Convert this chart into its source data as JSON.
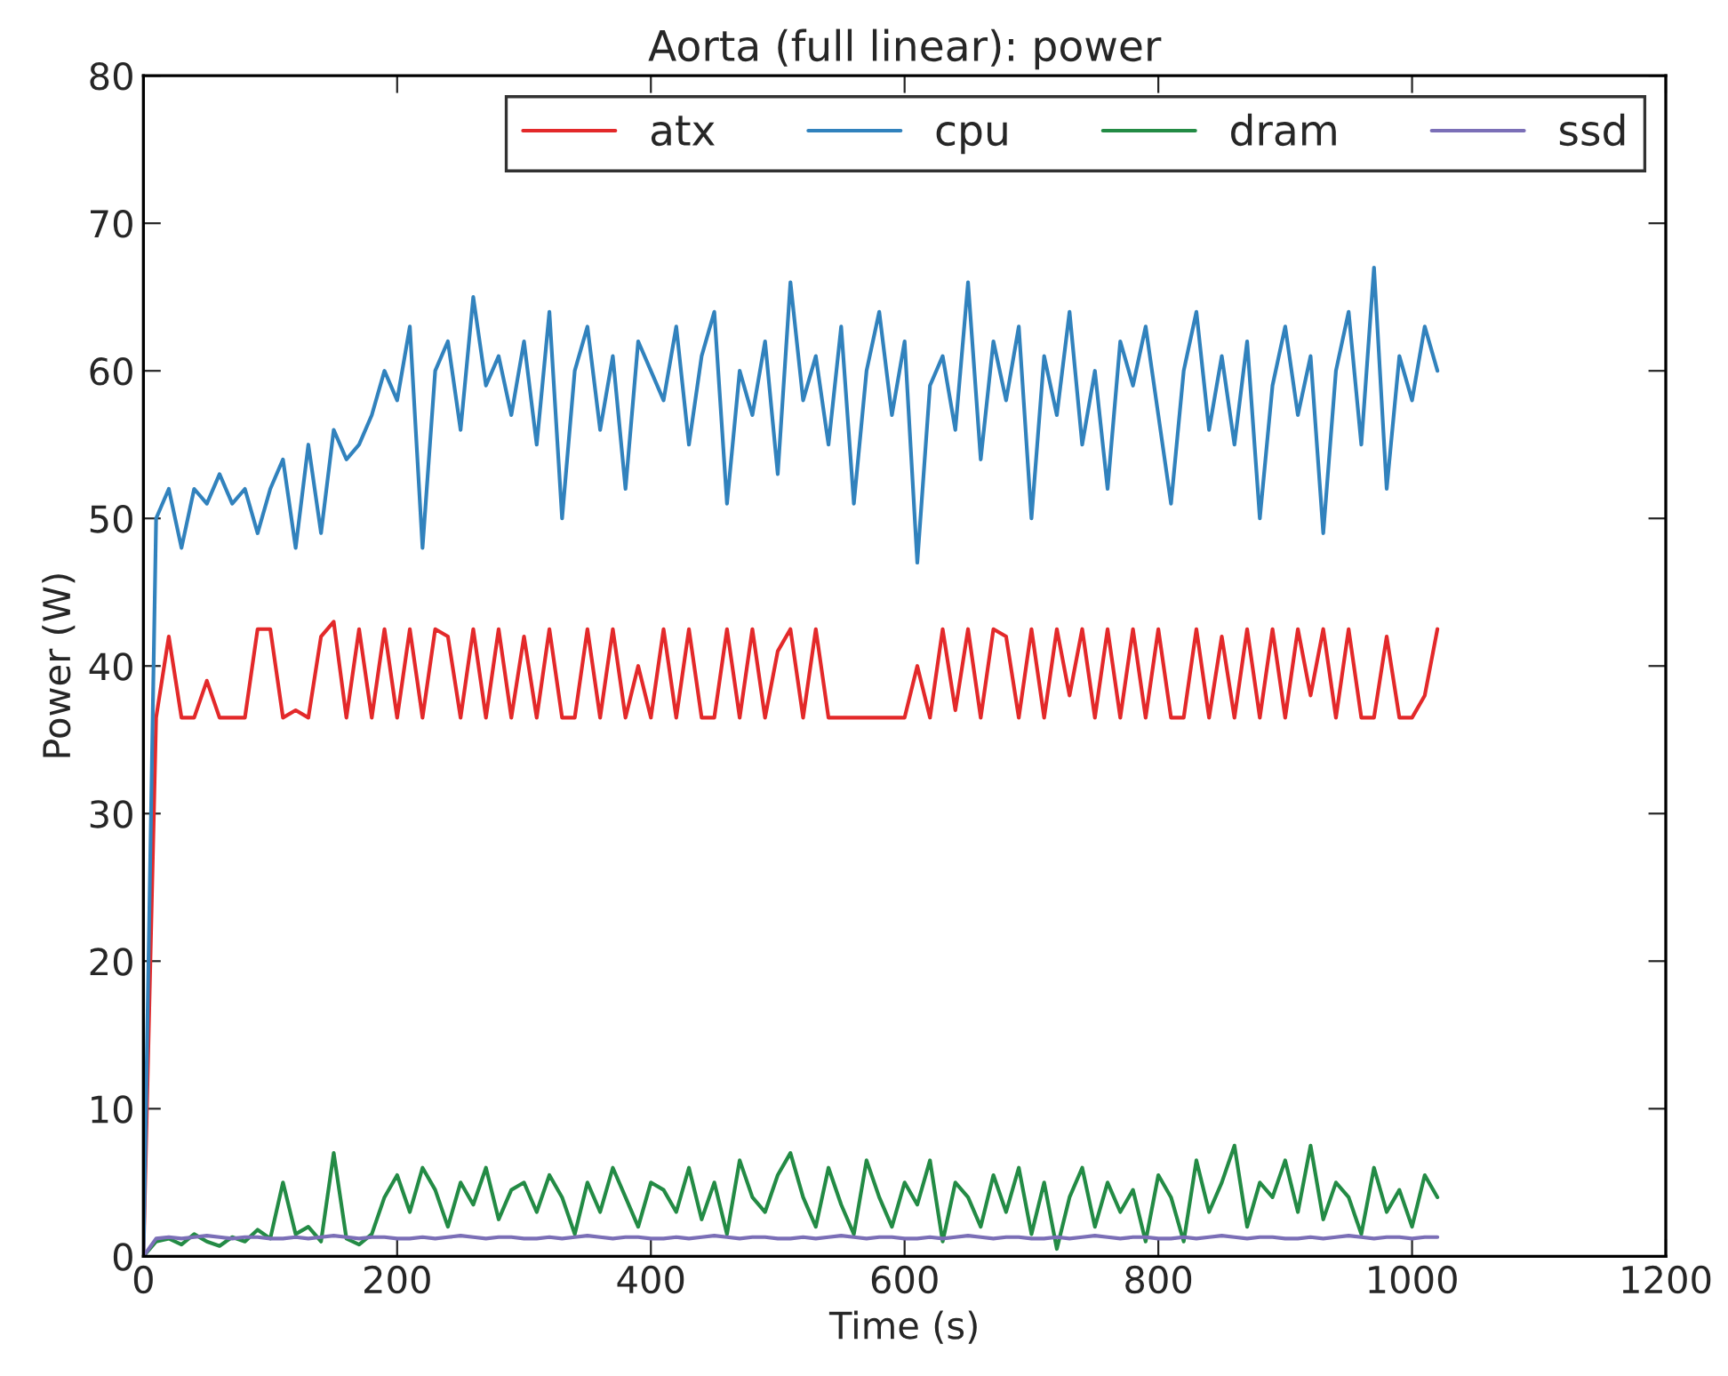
{
  "chart_data": {
    "type": "line",
    "title": "Aorta (full linear): power",
    "xlabel": "Time (s)",
    "ylabel": "Power (W)",
    "x": [
      0,
      10,
      20,
      30,
      40,
      50,
      60,
      70,
      80,
      90,
      100,
      110,
      120,
      130,
      140,
      150,
      160,
      170,
      180,
      190,
      200,
      210,
      220,
      230,
      240,
      250,
      260,
      270,
      280,
      290,
      300,
      310,
      320,
      330,
      340,
      350,
      360,
      370,
      380,
      390,
      400,
      410,
      420,
      430,
      440,
      450,
      460,
      470,
      480,
      490,
      500,
      510,
      520,
      530,
      540,
      550,
      560,
      570,
      580,
      590,
      600,
      610,
      620,
      630,
      640,
      650,
      660,
      670,
      680,
      690,
      700,
      710,
      720,
      730,
      740,
      750,
      760,
      770,
      780,
      790,
      800,
      810,
      820,
      830,
      840,
      850,
      860,
      870,
      880,
      890,
      900,
      910,
      920,
      930,
      940,
      950,
      960,
      970,
      980,
      990,
      1000,
      1010,
      1020
    ],
    "series": [
      {
        "name": "atx",
        "color": "#e3292a",
        "values": [
          0,
          36.5,
          42,
          36.5,
          36.5,
          39,
          36.5,
          36.5,
          36.5,
          42.5,
          42.5,
          36.5,
          37,
          36.5,
          42,
          43,
          36.5,
          42.5,
          36.5,
          42.5,
          36.5,
          42.5,
          36.5,
          42.5,
          42,
          36.5,
          42.5,
          36.5,
          42.5,
          36.5,
          42,
          36.5,
          42.5,
          36.5,
          36.5,
          42.5,
          36.5,
          42.5,
          36.5,
          40,
          36.5,
          42.5,
          36.5,
          42.5,
          36.5,
          36.5,
          42.5,
          36.5,
          42.5,
          36.5,
          41,
          42.5,
          36.5,
          42.5,
          36.5,
          36.5,
          36.5,
          36.5,
          36.5,
          36.5,
          36.5,
          40,
          36.5,
          42.5,
          37,
          42.5,
          36.5,
          42.5,
          42,
          36.5,
          42.5,
          36.5,
          42.5,
          38,
          42.5,
          36.5,
          42.5,
          36.5,
          42.5,
          36.5,
          42.5,
          36.5,
          36.5,
          42.5,
          36.5,
          42,
          36.5,
          42.5,
          36.5,
          42.5,
          36.5,
          42.5,
          38,
          42.5,
          36.5,
          42.5,
          36.5,
          36.5,
          42,
          36.5,
          36.5,
          38,
          42.5
        ]
      },
      {
        "name": "cpu",
        "color": "#3182bd",
        "values": [
          0,
          50,
          52,
          48,
          52,
          51,
          53,
          51,
          52,
          49,
          52,
          54,
          48,
          55,
          49,
          56,
          54,
          55,
          57,
          60,
          58,
          63,
          48,
          60,
          62,
          56,
          65,
          59,
          61,
          57,
          62,
          55,
          64,
          50,
          60,
          63,
          56,
          61,
          52,
          62,
          60,
          58,
          63,
          55,
          61,
          64,
          51,
          60,
          57,
          62,
          53,
          66,
          58,
          61,
          55,
          63,
          51,
          60,
          64,
          57,
          62,
          47,
          59,
          61,
          56,
          66,
          54,
          62,
          58,
          63,
          50,
          61,
          57,
          64,
          55,
          60,
          52,
          62,
          59,
          63,
          57,
          51,
          60,
          64,
          56,
          61,
          55,
          62,
          50,
          59,
          63,
          57,
          61,
          49,
          60,
          64,
          55,
          67,
          52,
          61,
          58,
          63,
          60
        ]
      },
      {
        "name": "dram",
        "color": "#238b45",
        "values": [
          0,
          1,
          1.2,
          0.8,
          1.5,
          1,
          0.7,
          1.3,
          1,
          1.8,
          1.2,
          5,
          1.5,
          2,
          1,
          7,
          1.2,
          0.8,
          1.5,
          4,
          5.5,
          3,
          6,
          4.5,
          2,
          5,
          3.5,
          6,
          2.5,
          4.5,
          5,
          3,
          5.5,
          4,
          1.5,
          5,
          3,
          6,
          4,
          2,
          5,
          4.5,
          3,
          6,
          2.5,
          5,
          1.5,
          6.5,
          4,
          3,
          5.5,
          7,
          4,
          2,
          6,
          3.5,
          1.5,
          6.5,
          4,
          2,
          5,
          3.5,
          6.5,
          1,
          5,
          4,
          2,
          5.5,
          3,
          6,
          1.5,
          5,
          0.5,
          4,
          6,
          2,
          5,
          3,
          4.5,
          1,
          5.5,
          4,
          1,
          6.5,
          3,
          5,
          7.5,
          2,
          5,
          4,
          6.5,
          3,
          7.5,
          2.5,
          5,
          4,
          1.5,
          6,
          3,
          4.5,
          2,
          5.5,
          4
        ]
      },
      {
        "name": "ssd",
        "color": "#7b6fb7",
        "values": [
          0,
          1.2,
          1.3,
          1.2,
          1.3,
          1.4,
          1.3,
          1.2,
          1.3,
          1.3,
          1.2,
          1.2,
          1.3,
          1.2,
          1.3,
          1.4,
          1.3,
          1.2,
          1.3,
          1.3,
          1.2,
          1.2,
          1.3,
          1.2,
          1.3,
          1.4,
          1.3,
          1.2,
          1.3,
          1.3,
          1.2,
          1.2,
          1.3,
          1.2,
          1.3,
          1.4,
          1.3,
          1.2,
          1.3,
          1.3,
          1.2,
          1.2,
          1.3,
          1.2,
          1.3,
          1.4,
          1.3,
          1.2,
          1.3,
          1.3,
          1.2,
          1.2,
          1.3,
          1.2,
          1.3,
          1.4,
          1.3,
          1.2,
          1.3,
          1.3,
          1.2,
          1.2,
          1.3,
          1.2,
          1.3,
          1.4,
          1.3,
          1.2,
          1.3,
          1.3,
          1.2,
          1.2,
          1.3,
          1.2,
          1.3,
          1.4,
          1.3,
          1.2,
          1.3,
          1.3,
          1.2,
          1.2,
          1.3,
          1.2,
          1.3,
          1.4,
          1.3,
          1.2,
          1.3,
          1.3,
          1.2,
          1.2,
          1.3,
          1.2,
          1.3,
          1.4,
          1.3,
          1.2,
          1.3,
          1.3,
          1.2,
          1.3,
          1.3
        ]
      }
    ],
    "xlim": [
      0,
      1200
    ],
    "xticks": [
      0,
      200,
      400,
      600,
      800,
      1000,
      1200
    ],
    "ylim": [
      0,
      80
    ],
    "yticks": [
      0,
      10,
      20,
      30,
      40,
      50,
      60,
      70,
      80
    ],
    "legend": "top right",
    "grid": false
  }
}
